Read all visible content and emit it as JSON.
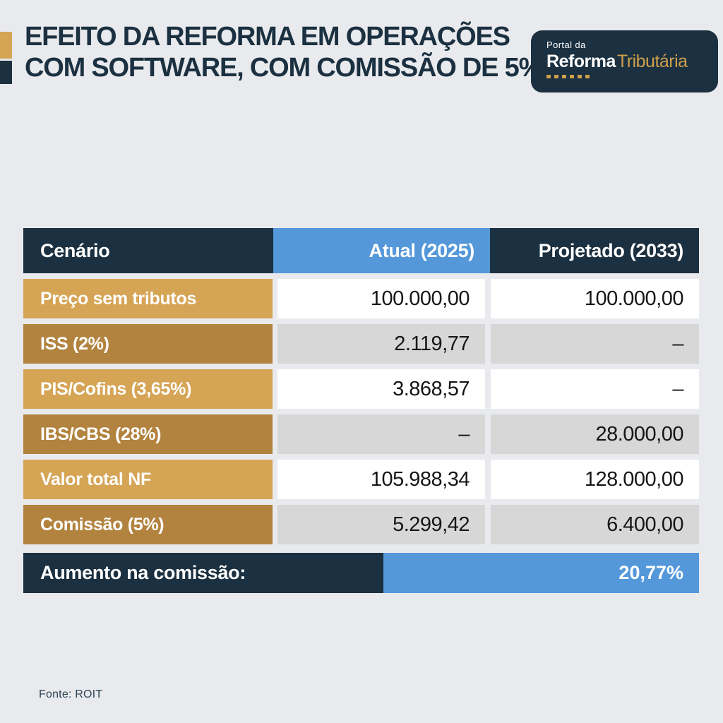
{
  "header": {
    "title_line1": "EFEITO DA REFORMA EM OPERAÇÕES",
    "title_line2": "COM SOFTWARE, COM COMISSÃO DE 5%",
    "logo": {
      "top": "Portal da",
      "brand_bold": "Reforma",
      "brand_light": "Tributária"
    }
  },
  "colors": {
    "background": "#e8eaed",
    "navy": "#1b3040",
    "blue": "#5498da",
    "gold_light": "#d5a455",
    "gold_dark": "#b2833f",
    "gold_logo": "#cfa04b",
    "gray_cell": "#d7d7d7"
  },
  "table": {
    "columns": [
      "Cenário",
      "Atual (2025)",
      "Projetado (2033)"
    ],
    "rows": [
      {
        "label": "Preço sem tributos",
        "atual": "100.000,00",
        "projetado": "100.000,00"
      },
      {
        "label": "ISS (2%)",
        "atual": "2.119,77",
        "projetado": "–"
      },
      {
        "label": "PIS/Cofins (3,65%)",
        "atual": "3.868,57",
        "projetado": "–"
      },
      {
        "label": "IBS/CBS (28%)",
        "atual": "–",
        "projetado": "28.000,00"
      },
      {
        "label": "Valor total NF",
        "atual": "105.988,34",
        "projetado": "128.000,00"
      },
      {
        "label": "Comissão (5%)",
        "atual": "5.299,42",
        "projetado": "6.400,00"
      }
    ],
    "footer": {
      "label": "Aumento na comissão:",
      "value": "20,77%"
    }
  },
  "source": "Fonte: ROIT",
  "chart_data": {
    "type": "table",
    "title": "Efeito da reforma em operações com software, com comissão de 5%",
    "columns": [
      "Cenário",
      "Atual (2025)",
      "Projetado (2033)"
    ],
    "rows": [
      [
        "Preço sem tributos",
        100000.0,
        100000.0
      ],
      [
        "ISS (2%)",
        2119.77,
        null
      ],
      [
        "PIS/Cofins (3,65%)",
        3868.57,
        null
      ],
      [
        "IBS/CBS (28%)",
        null,
        28000.0
      ],
      [
        "Valor total NF",
        105988.34,
        128000.0
      ],
      [
        "Comissão (5%)",
        5299.42,
        6400.0
      ]
    ],
    "summary": {
      "label": "Aumento na comissão:",
      "value_percent": 20.77
    },
    "source": "Fonte: ROIT"
  }
}
